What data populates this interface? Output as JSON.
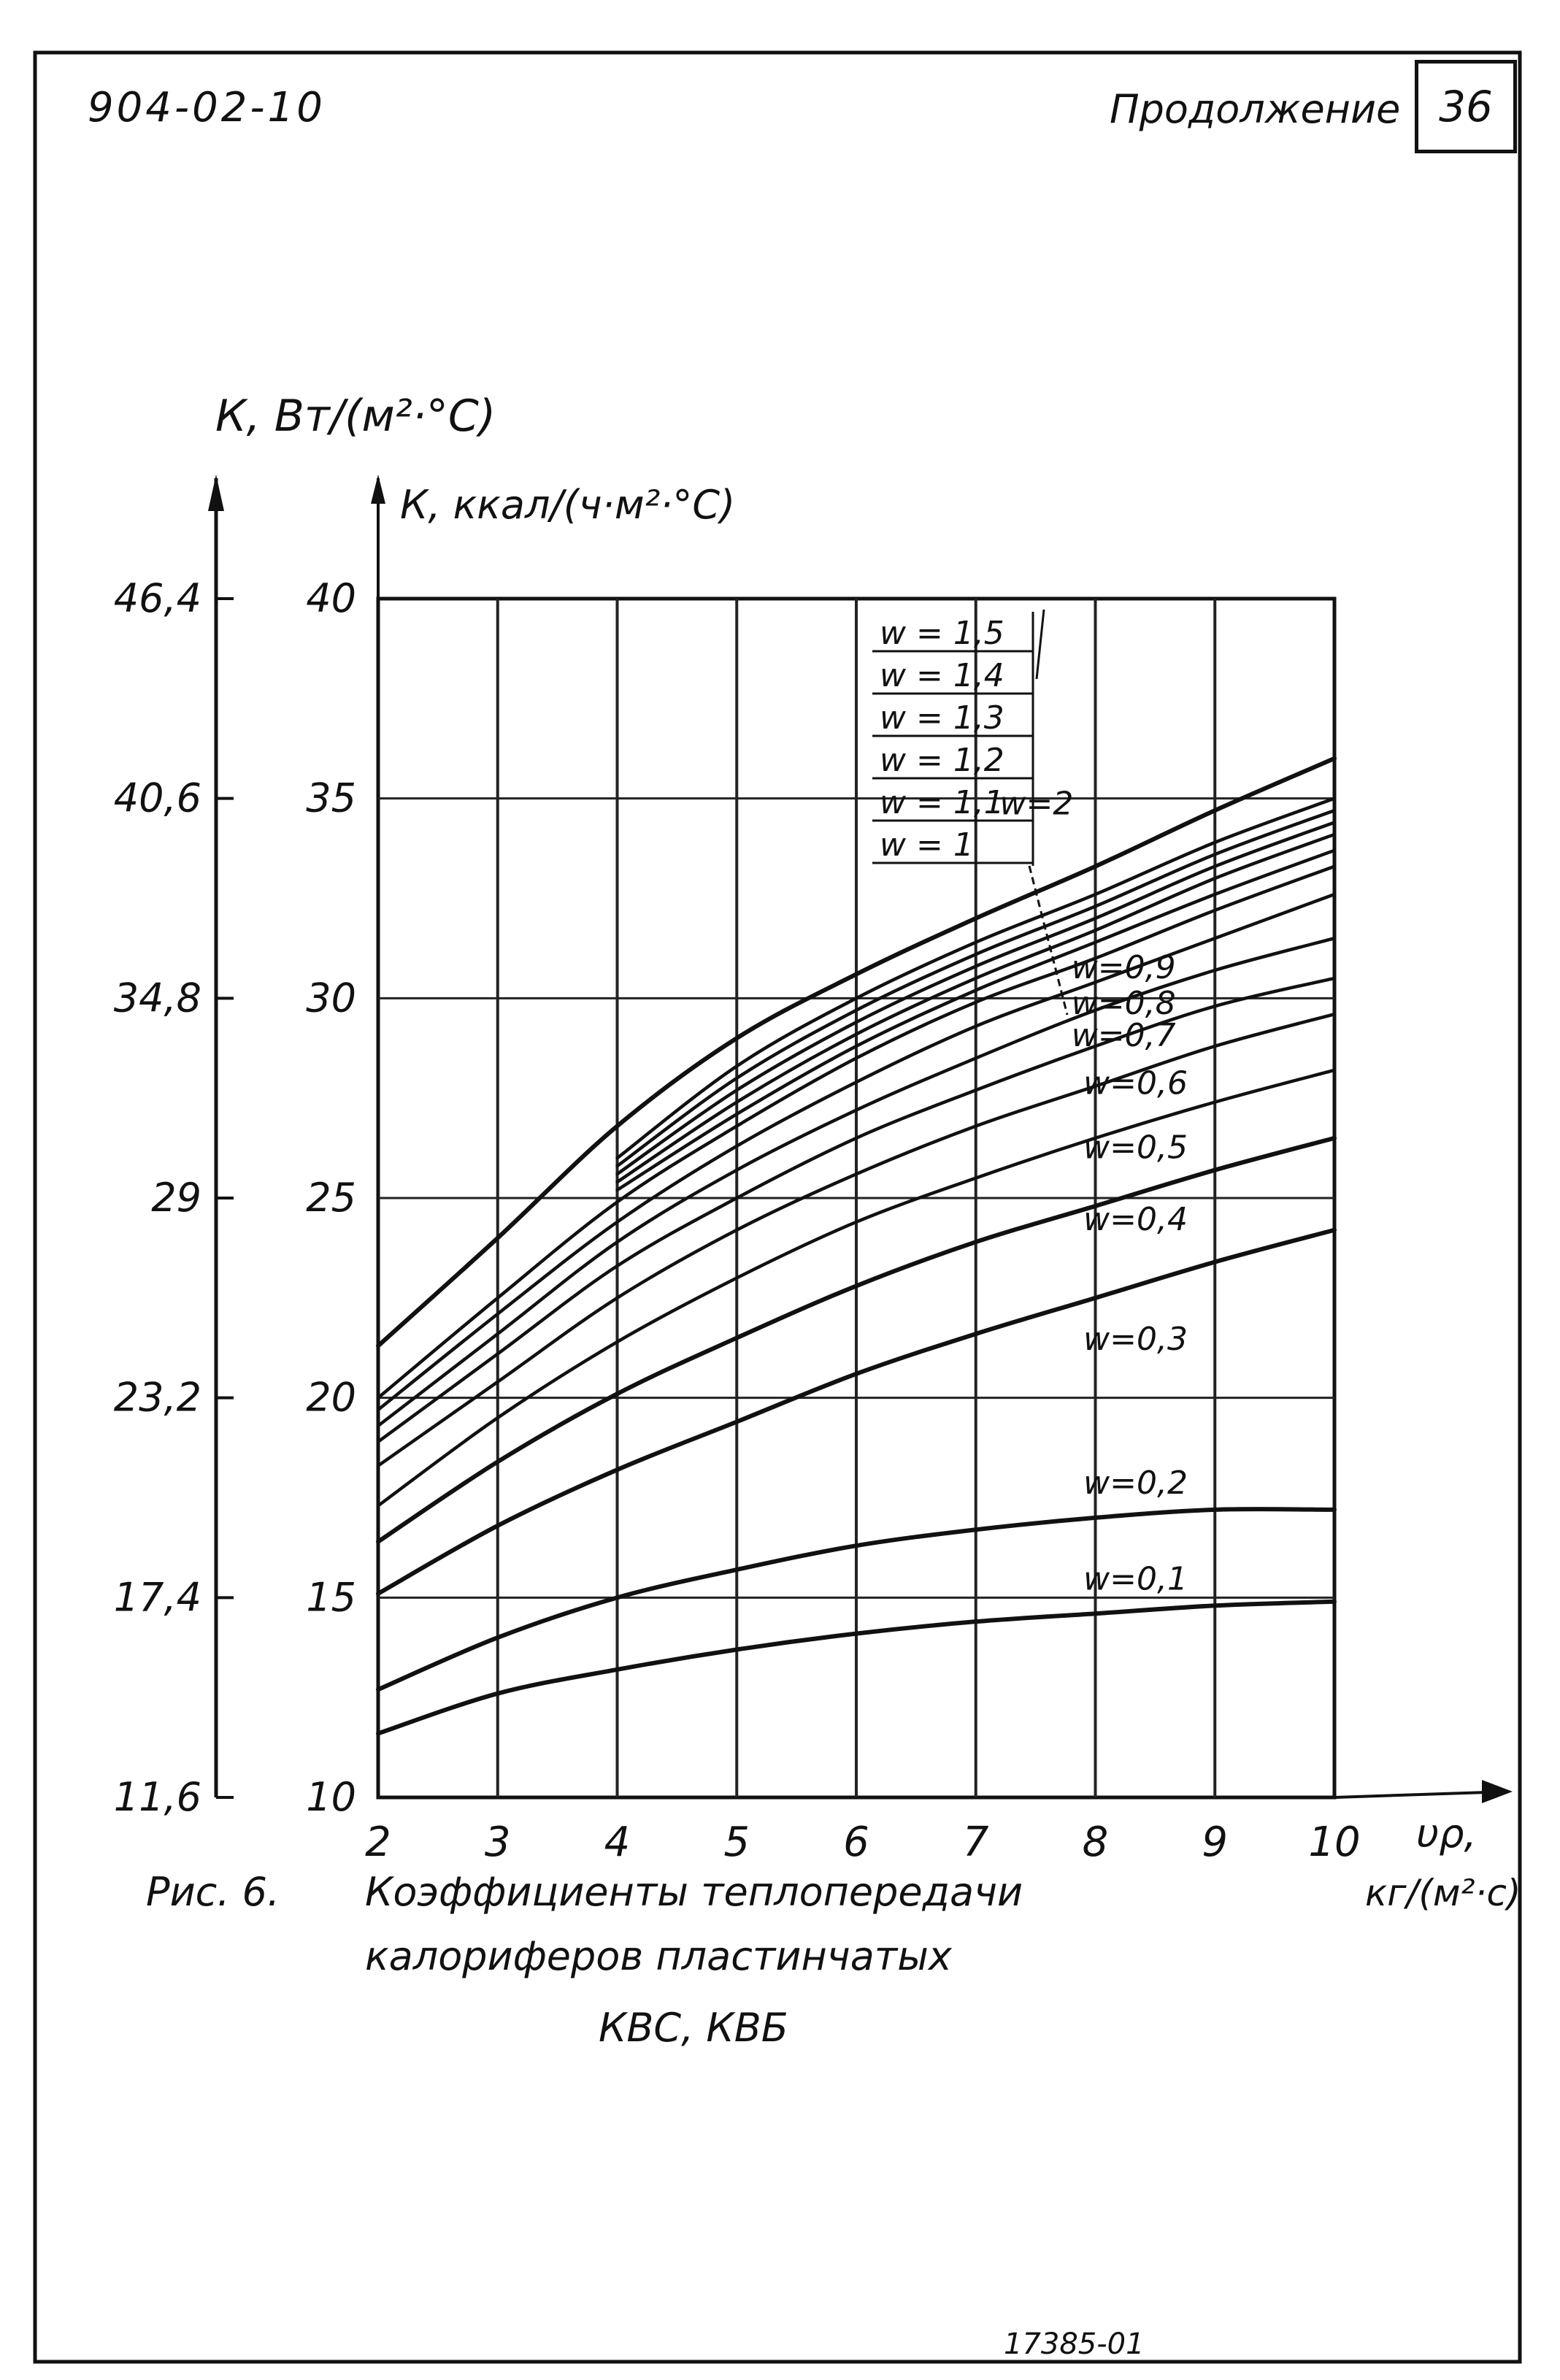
{
  "header": {
    "doc_code": "904-02-10",
    "continuation_label": "Продолжение",
    "page_number": "36"
  },
  "figure": {
    "label": "Рис. 6.",
    "caption_line1": "Коэффициенты теплопередачи",
    "caption_line2": "калориферов пластинчатых",
    "caption_line3": "КВС, КВБ"
  },
  "footer": {
    "stamp": "17385-01"
  },
  "chart_data": {
    "type": "line",
    "xlabel": "υρ, кг/(м²·с)",
    "ylabel": "К, ккал/(ч·м²·°С)",
    "ylabel_secondary": "К, Вт/(м²·°С)",
    "xlim": [
      2,
      10
    ],
    "ylim": [
      10,
      40
    ],
    "grid": true,
    "x_ticks": [
      "2",
      "3",
      "4",
      "5",
      "6",
      "7",
      "8",
      "9",
      "10"
    ],
    "y_ticks": [
      "10",
      "15",
      "20",
      "25",
      "30",
      "35",
      "40"
    ],
    "y_ticks_secondary": [
      "11,6",
      "17,4",
      "23,2",
      "29",
      "34,8",
      "40,6",
      "46,4"
    ],
    "legend_box": [
      "w = 1,5",
      "w = 1,4",
      "w = 1,3",
      "w = 1,2",
      "w = 1,1",
      "w = 1"
    ],
    "x": [
      2,
      3,
      4,
      5,
      6,
      7,
      8,
      9,
      10
    ],
    "series": [
      {
        "name": "w=2",
        "x": [
          2,
          3,
          4,
          5,
          6,
          7,
          8,
          9,
          10
        ],
        "values": [
          21.3,
          24.0,
          26.8,
          29.0,
          30.6,
          32.0,
          33.3,
          34.7,
          36.0
        ]
      },
      {
        "name": "w=1,5",
        "x": [
          4,
          5,
          6,
          7,
          8,
          9,
          10
        ],
        "values": [
          26.0,
          28.3,
          30.0,
          31.4,
          32.6,
          33.9,
          35.0
        ]
      },
      {
        "name": "w=1,4",
        "x": [
          4,
          5,
          6,
          7,
          8,
          9,
          10
        ],
        "values": [
          25.8,
          28.0,
          29.7,
          31.1,
          32.3,
          33.6,
          34.7
        ]
      },
      {
        "name": "w=1,3",
        "x": [
          4,
          5,
          6,
          7,
          8,
          9,
          10
        ],
        "values": [
          25.6,
          27.7,
          29.4,
          30.8,
          32.0,
          33.3,
          34.4
        ]
      },
      {
        "name": "w=1,2",
        "x": [
          4,
          5,
          6,
          7,
          8,
          9,
          10
        ],
        "values": [
          25.4,
          27.4,
          29.1,
          30.5,
          31.7,
          33.0,
          34.1
        ]
      },
      {
        "name": "w=1,1",
        "x": [
          4,
          5,
          6,
          7,
          8,
          9,
          10
        ],
        "values": [
          25.2,
          27.1,
          28.8,
          30.2,
          31.4,
          32.6,
          33.7
        ]
      },
      {
        "name": "w=1",
        "x": [
          2,
          3,
          4,
          5,
          6,
          7,
          8,
          9,
          10
        ],
        "values": [
          20.0,
          22.5,
          24.9,
          26.8,
          28.5,
          29.9,
          31.0,
          32.2,
          33.3
        ]
      },
      {
        "name": "w=0,9",
        "x": [
          2,
          3,
          4,
          5,
          6,
          7,
          8,
          9,
          10
        ],
        "values": [
          19.7,
          22.1,
          24.4,
          26.3,
          27.9,
          29.3,
          30.4,
          31.5,
          32.6
        ]
      },
      {
        "name": "w=0,8",
        "x": [
          2,
          3,
          4,
          5,
          6,
          7,
          8,
          9,
          10
        ],
        "values": [
          19.3,
          21.6,
          23.9,
          25.7,
          27.2,
          28.5,
          29.7,
          30.7,
          31.5
        ]
      },
      {
        "name": "w=0,7",
        "x": [
          2,
          3,
          4,
          5,
          6,
          7,
          8,
          9,
          10
        ],
        "values": [
          18.9,
          21.1,
          23.3,
          25.0,
          26.5,
          27.7,
          28.8,
          29.8,
          30.5
        ]
      },
      {
        "name": "w=0,6",
        "x": [
          2,
          3,
          4,
          5,
          6,
          7,
          8,
          9,
          10
        ],
        "values": [
          18.3,
          20.4,
          22.5,
          24.2,
          25.6,
          26.8,
          27.8,
          28.8,
          29.6
        ]
      },
      {
        "name": "w=0,5",
        "x": [
          2,
          3,
          4,
          5,
          6,
          7,
          8,
          9,
          10
        ],
        "values": [
          17.3,
          19.5,
          21.4,
          23.0,
          24.4,
          25.5,
          26.5,
          27.4,
          28.2
        ]
      },
      {
        "name": "w=0,4",
        "x": [
          2,
          3,
          4,
          5,
          6,
          7,
          8,
          9,
          10
        ],
        "values": [
          16.4,
          18.4,
          20.1,
          21.5,
          22.8,
          23.9,
          24.8,
          25.7,
          26.5
        ]
      },
      {
        "name": "w=0,3",
        "x": [
          2,
          3,
          4,
          5,
          6,
          7,
          8,
          9,
          10
        ],
        "values": [
          15.1,
          16.8,
          18.2,
          19.4,
          20.6,
          21.6,
          22.5,
          23.4,
          24.2
        ]
      },
      {
        "name": "w=0,2",
        "x": [
          2,
          3,
          4,
          5,
          6,
          7,
          8,
          9,
          10
        ],
        "values": [
          12.7,
          14.0,
          15.0,
          15.7,
          16.3,
          16.7,
          17.0,
          17.2,
          17.2
        ]
      },
      {
        "name": "w=0,1",
        "x": [
          2,
          3,
          4,
          5,
          6,
          7,
          8,
          9,
          10
        ],
        "values": [
          11.6,
          12.6,
          13.2,
          13.7,
          14.1,
          14.4,
          14.6,
          14.8,
          14.9
        ]
      }
    ],
    "curve_labels": [
      {
        "series": "w=2",
        "text": "w=2"
      },
      {
        "series": "w=0,9",
        "text": "w=0,9"
      },
      {
        "series": "w=0,8",
        "text": "w=0,8"
      },
      {
        "series": "w=0,7",
        "text": "w=0,7"
      },
      {
        "series": "w=0,6",
        "text": "w=0,6"
      },
      {
        "series": "w=0,5",
        "text": "w=0,5"
      },
      {
        "series": "w=0,4",
        "text": "w=0,4"
      },
      {
        "series": "w=0,3",
        "text": "w=0,3"
      },
      {
        "series": "w=0,2",
        "text": "w=0,2"
      },
      {
        "series": "w=0,1",
        "text": "w=0,1"
      }
    ],
    "colors": {
      "ink": "#111111",
      "grid": "#222222",
      "paper": "#ffffff"
    }
  }
}
